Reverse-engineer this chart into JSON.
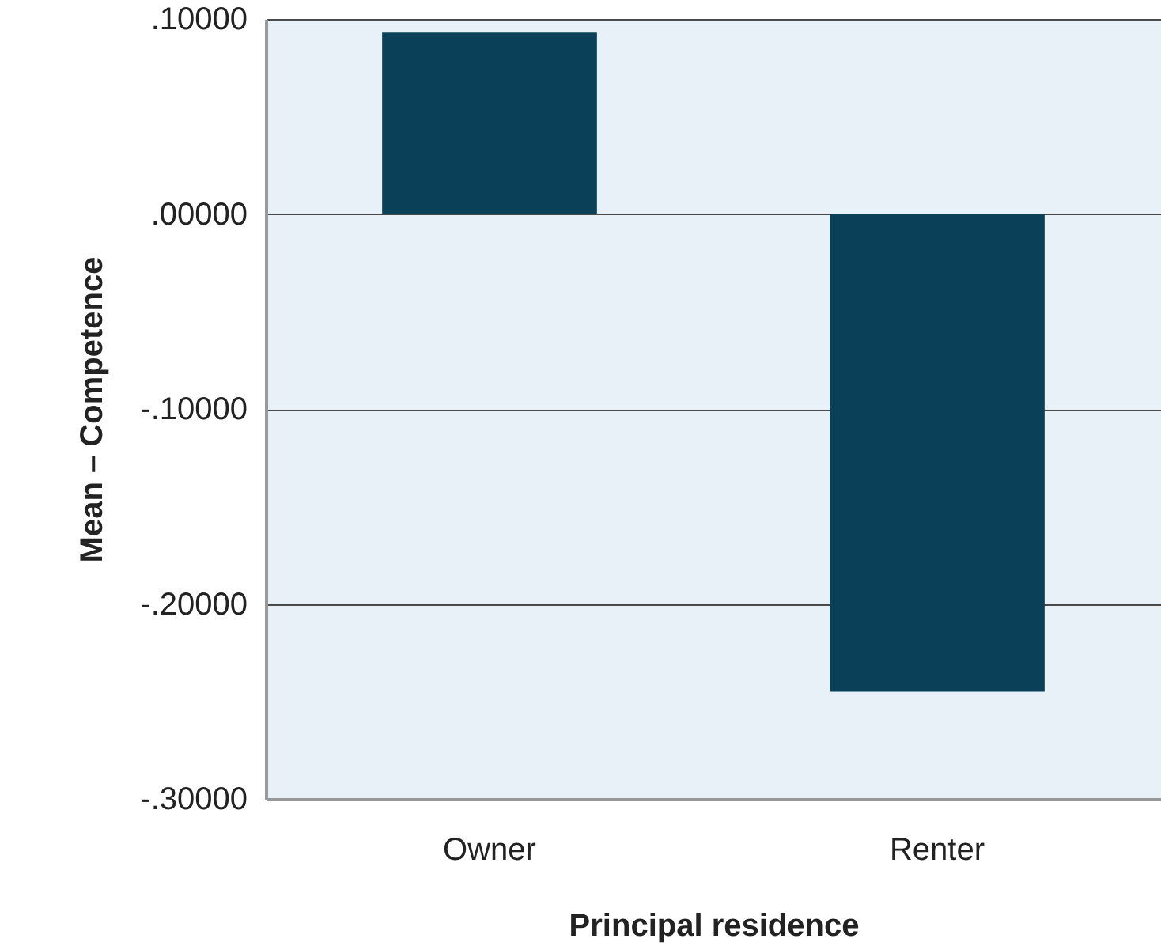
{
  "chart_data": {
    "type": "bar",
    "xlabel": "Principal residence",
    "ylabel": "Mean – Competence",
    "categories": [
      "Owner",
      "Renter"
    ],
    "series": [
      {
        "color": "#0b4059",
        "values": [
          0.093,
          -0.245
        ]
      }
    ],
    "ylim": [
      -0.3,
      0.1
    ],
    "yticks": [
      {
        "value": 0.1,
        "label": ".10000"
      },
      {
        "value": 0.0,
        "label": ".00000"
      },
      {
        "value": -0.1,
        "label": "-.10000"
      },
      {
        "value": -0.2,
        "label": "-.20000"
      },
      {
        "value": -0.3,
        "label": "-.30000"
      }
    ],
    "grid": "y"
  }
}
